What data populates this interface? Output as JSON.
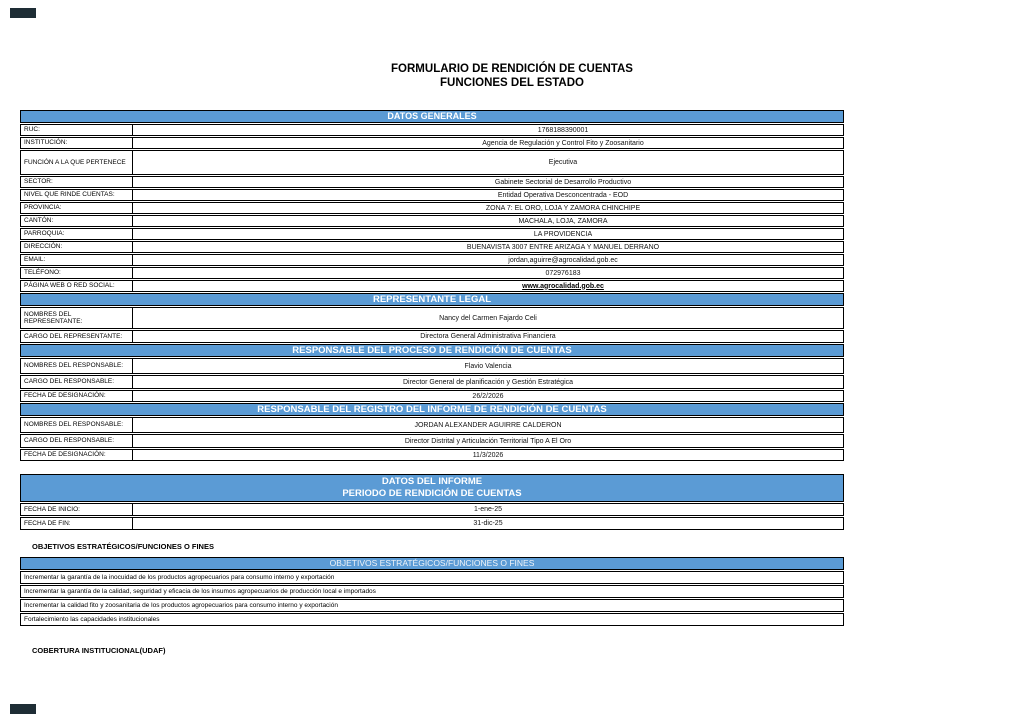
{
  "title": {
    "line1": "FORMULARIO DE RENDICIÓN DE CUENTAS",
    "line2": "FUNCIONES DEL ESTADO"
  },
  "colors": {
    "header_blue": "#5B9BD5",
    "border": "#000000"
  },
  "datos_generales": {
    "header": "DATOS GENERALES",
    "rows": [
      {
        "label": "RUC:",
        "value": "1768188390001"
      },
      {
        "label": "INSTITUCIÓN:",
        "value": "Agencia de Regulación y Control Fito y Zoosanitario"
      },
      {
        "label": "FUNCIÓN A LA QUE PERTENECE",
        "value": "Ejecutiva"
      },
      {
        "label": "SECTOR:",
        "value": "Gabinete Sectorial de Desarrollo Productivo"
      },
      {
        "label": "NIVEL QUE RINDE CUENTAS:",
        "value": "Entidad Operativa Desconcentrada - EOD"
      },
      {
        "label": "PROVINCIA:",
        "value": "ZONA 7: EL ORO, LOJA Y ZAMORA CHINCHIPE"
      },
      {
        "label": "CANTÓN:",
        "value": "MACHALA, LOJA, ZAMORA"
      },
      {
        "label": "PARROQUIA:",
        "value": "LA PROVIDENCIA"
      },
      {
        "label": "DIRECCIÓN:",
        "value": "BUENAVISTA 3007 ENTRE ARIZAGA Y MANUEL DERRANO"
      },
      {
        "label": "EMAIL:",
        "value": "jordan,aguirre@agrocalidad.gob.ec"
      },
      {
        "label": "TELÉFONO:",
        "value": "072976183"
      },
      {
        "label": "PÁGINA WEB O RED SOCIAL:",
        "value": "www.agrocalidad.gob.ec"
      }
    ]
  },
  "representante_legal": {
    "header": "REPRESENTANTE LEGAL",
    "rows": [
      {
        "label": "NOMBRES DEL REPRESENTANTE:",
        "value": "Nancy del Carmen Fajardo Celi"
      },
      {
        "label": "CARGO DEL REPRESENTANTE:",
        "value": "Directora General Administrativa Financiera"
      }
    ]
  },
  "responsable_proceso": {
    "header": "RESPONSABLE DEL PROCESO DE RENDICIÓN DE CUENTAS",
    "rows": [
      {
        "label": "NOMBRES DEL RESPONSABLE:",
        "value": "Flavio Valencia"
      },
      {
        "label": "CARGO DEL RESPONSABLE:",
        "value": "Director General de planificación y Gestión Estratégica"
      },
      {
        "label": "FECHA DE DESIGNACIÓN:",
        "value": "26/2/2026"
      }
    ]
  },
  "responsable_registro": {
    "header": "RESPONSABLE DEL REGISTRO DEL INFORME DE RENDICIÓN DE CUENTAS",
    "rows": [
      {
        "label": "NOMBRES DEL RESPONSABLE:",
        "value": "JORDAN ALEXANDER AGUIRRE CALDERON"
      },
      {
        "label": "CARGO DEL RESPONSABLE:",
        "value": "Director Distrital y Articulación Territorial Tipo A El Oro"
      },
      {
        "label": "FECHA DE DESIGNACIÓN:",
        "value": "11/3/2026"
      }
    ]
  },
  "datos_informe": {
    "header_line1": "DATOS DEL INFORME",
    "header_line2": "PERIODO DE RENDICIÓN DE CUENTAS",
    "rows": [
      {
        "label": "FECHA DE INICIO:",
        "value": "1-ene-25"
      },
      {
        "label": "FECHA DE FIN:",
        "value": "31-dic-25"
      }
    ]
  },
  "objetivos": {
    "section_label": "OBJETIVOS ESTRATÉGICOS/FUNCIONES O FINES",
    "header": "OBJETIVOS ESTRATÉGICOS/FUNCIONES O FINES",
    "items": [
      "Incrementar la garantía de la inocuidad de los productos agropecuarios para consumo interno y exportación",
      "Incrementar la garantía de la calidad, seguridad y eficacia de los insumos agropecuarios de producción local e importados",
      "Incrementar la calidad fito y zoosanitaria de los productos agropecuarios para consumo interno y exportación",
      "Fortalecimiento las capacidades institucionales"
    ]
  },
  "cobertura": {
    "section_label": "COBERTURA INSTITUCIONAL(UDAF)"
  }
}
